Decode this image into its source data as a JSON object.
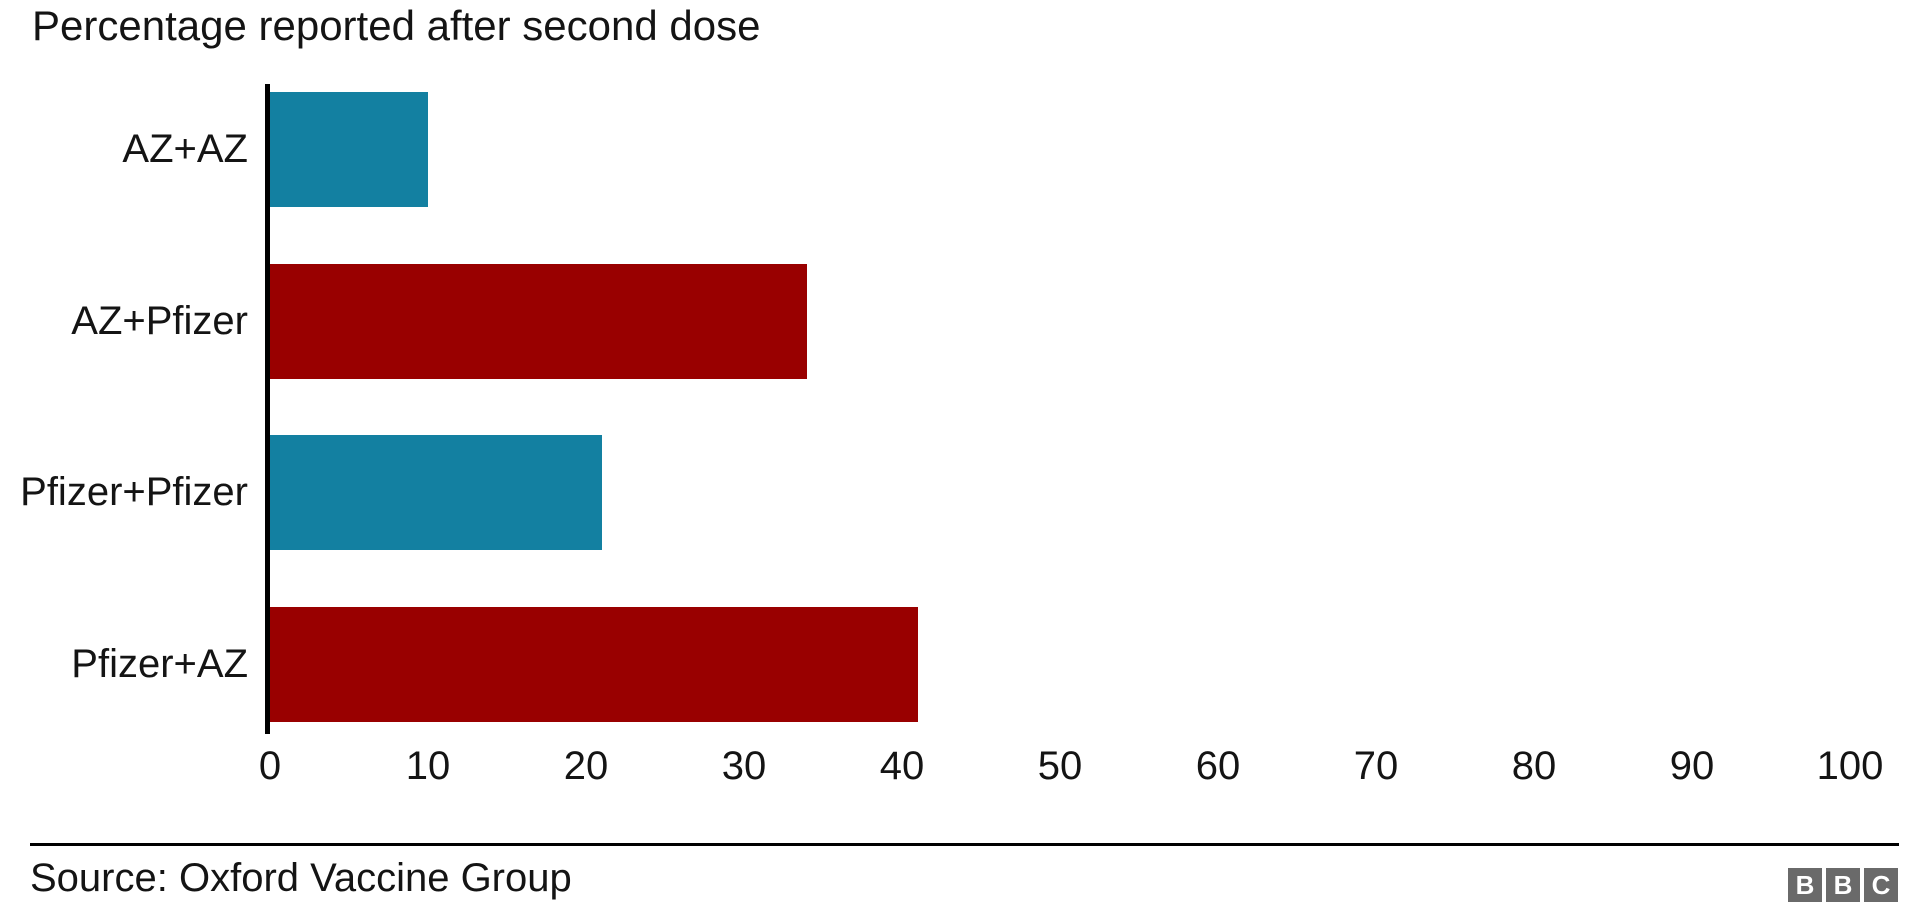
{
  "chart_data": {
    "type": "bar",
    "orientation": "horizontal",
    "title": "Percentage reported after second dose",
    "categories": [
      "AZ+AZ",
      "AZ+Pfizer",
      "Pfizer+Pfizer",
      "Pfizer+AZ"
    ],
    "values": [
      10,
      34,
      21,
      41
    ],
    "series": [
      {
        "name": "Percentage reported after second dose",
        "values": [
          10,
          34,
          21,
          41
        ]
      }
    ],
    "bar_colors": [
      "#1380A1",
      "#990000",
      "#1380A1",
      "#990000"
    ],
    "xlabel": "",
    "ylabel": "",
    "xlim": [
      0,
      100
    ],
    "x_ticks": [
      0,
      10,
      20,
      30,
      40,
      50,
      60,
      70,
      80,
      90,
      100
    ],
    "grid": false,
    "legend": false,
    "axis_color": "#000000",
    "background_color": "#ffffff",
    "text_color": "#141414"
  },
  "footer": {
    "source": "Source: Oxford Vaccine Group",
    "logo_letters": [
      "B",
      "B",
      "C"
    ],
    "logo_block_color": "#6A6A6A",
    "logo_letter_color": "#ffffff"
  }
}
